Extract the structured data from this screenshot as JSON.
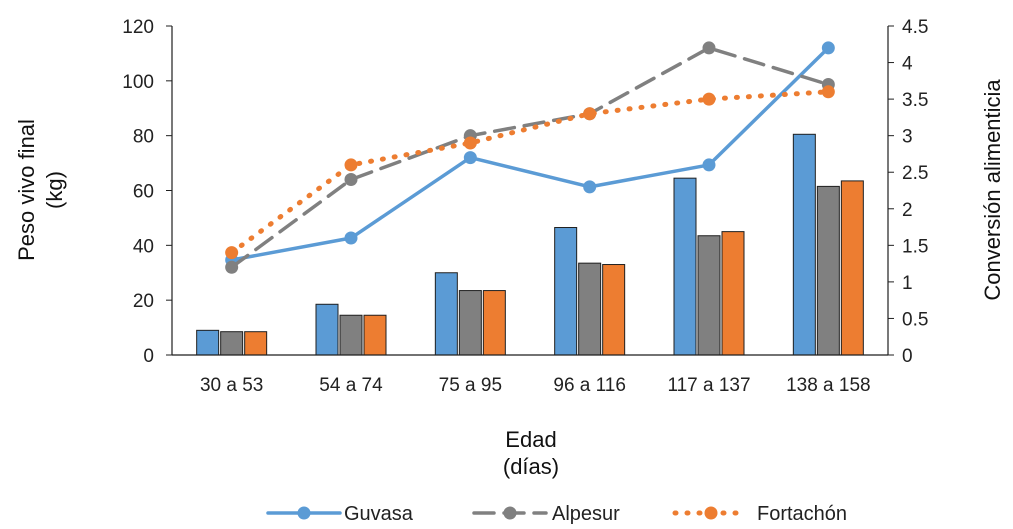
{
  "chart_data": {
    "type": "bar",
    "categories": [
      "30 a 53",
      "54 a 74",
      "75 a 95",
      "96 a 116",
      "117 a 137",
      "138 a 158"
    ],
    "bar_series": [
      {
        "name": "Guvasa",
        "color": "#5B9BD5",
        "values": [
          9,
          18.5,
          30,
          46.5,
          64.5,
          80.5
        ]
      },
      {
        "name": "Alpesur",
        "color": "#808080",
        "values": [
          8.5,
          14.5,
          23.5,
          33.5,
          43.5,
          61.5
        ]
      },
      {
        "name": "Fortachón",
        "color": "#ED7D31",
        "values": [
          8.5,
          14.5,
          23.5,
          33,
          45,
          63.5
        ]
      }
    ],
    "line_series": [
      {
        "name": "Guvasa",
        "color": "#5B9BD5",
        "dash": "solid",
        "values": [
          1.3,
          1.6,
          2.7,
          2.3,
          2.6,
          4.2
        ]
      },
      {
        "name": "Alpesur",
        "color": "#808080",
        "dash": "dashed",
        "values": [
          1.2,
          2.4,
          3.0,
          3.3,
          4.2,
          3.7
        ]
      },
      {
        "name": "Fortachón",
        "color": "#ED7D31",
        "dash": "dotted",
        "values": [
          1.4,
          2.6,
          2.9,
          3.3,
          3.5,
          3.6
        ]
      }
    ],
    "y_left": {
      "label_line1": "Peso vivo final",
      "label_line2": "(kg)",
      "min": 0,
      "max": 120,
      "ticks": [
        "0",
        "20",
        "40",
        "60",
        "80",
        "100",
        "120"
      ]
    },
    "y_right": {
      "label": "Conversión alimenticia",
      "min": 0,
      "max": 4.5,
      "ticks": [
        "0",
        "0.5",
        "1",
        "1.5",
        "2",
        "2.5",
        "3",
        "3.5",
        "4",
        "4.5"
      ]
    },
    "x_axis": {
      "label_line1": "Edad",
      "label_line2": "(días)"
    },
    "legend_position": "bottom",
    "grid": false
  }
}
